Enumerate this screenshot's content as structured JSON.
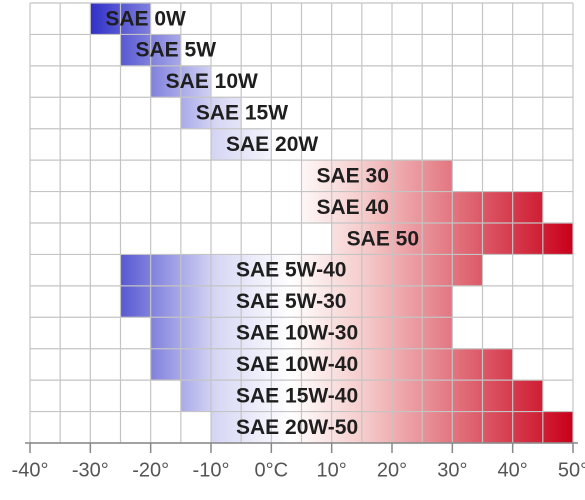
{
  "chart_data": {
    "type": "range-bar",
    "categories": [
      "SAE 0W",
      "SAE 5W",
      "SAE 10W",
      "SAE 15W",
      "SAE 20W",
      "SAE 30",
      "SAE 40",
      "SAE 50",
      "SAE  5W-40",
      "SAE  5W-30",
      "SAE 10W-30",
      "SAE 10W-40",
      "SAE 15W-40",
      "SAE 20W-50"
    ],
    "low": [
      -30,
      -25,
      -20,
      -15,
      -10,
      5,
      5,
      10,
      -25,
      -25,
      -20,
      -20,
      -15,
      -10
    ],
    "high": [
      -20,
      -15,
      -10,
      -5,
      0,
      30,
      45,
      50,
      35,
      30,
      30,
      40,
      45,
      50
    ],
    "cold_color": "#2f2fc8",
    "hot_color": "#c8001a",
    "xlim": [
      -40,
      50
    ],
    "xticks": [
      {
        "value": -40,
        "label": "-40°"
      },
      {
        "value": -30,
        "label": "-30°"
      },
      {
        "value": -20,
        "label": "-20°"
      },
      {
        "value": -10,
        "label": "-10°"
      },
      {
        "value": 0,
        "label": "0°C"
      },
      {
        "value": 10,
        "label": "10°"
      },
      {
        "value": 20,
        "label": "20°"
      },
      {
        "value": 30,
        "label": "30°"
      },
      {
        "value": 40,
        "label": "40°"
      },
      {
        "value": 50,
        "label": "50°"
      }
    ],
    "xgrid": [
      -40,
      -35,
      -30,
      -25,
      -20,
      -15,
      -10,
      -5,
      0,
      5,
      10,
      15,
      20,
      25,
      30,
      35,
      40,
      45,
      50
    ],
    "grid": true
  }
}
